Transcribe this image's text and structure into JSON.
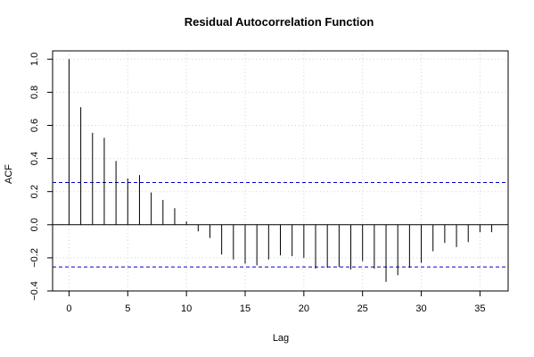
{
  "chart_data": {
    "type": "bar",
    "title": "Residual Autocorrelation Function",
    "xlabel": "Lag",
    "ylabel": "ACF",
    "xlim": [
      -1.4,
      37.4
    ],
    "ylim": [
      -0.4,
      1.05
    ],
    "xticks": [
      0,
      5,
      10,
      15,
      20,
      25,
      30,
      35
    ],
    "yticks": [
      -0.4,
      -0.2,
      0.0,
      0.2,
      0.4,
      0.6,
      0.8,
      1.0
    ],
    "xtick_labels": [
      "0",
      "5",
      "10",
      "15",
      "20",
      "25",
      "30",
      "35"
    ],
    "ytick_labels": [
      "−0.4",
      "−0.2",
      "0.0",
      "0.2",
      "0.4",
      "0.6",
      "0.8",
      "1.0"
    ],
    "grid": true,
    "lags": [
      0,
      1,
      2,
      3,
      4,
      5,
      6,
      7,
      8,
      9,
      10,
      11,
      12,
      13,
      14,
      15,
      16,
      17,
      18,
      19,
      20,
      21,
      22,
      23,
      24,
      25,
      26,
      27,
      28,
      29,
      30,
      31,
      32,
      33,
      34,
      35,
      36
    ],
    "values": [
      1.0,
      0.71,
      0.555,
      0.525,
      0.385,
      0.28,
      0.3,
      0.195,
      0.15,
      0.1,
      0.02,
      -0.04,
      -0.08,
      -0.18,
      -0.21,
      -0.235,
      -0.245,
      -0.21,
      -0.185,
      -0.19,
      -0.2,
      -0.265,
      -0.26,
      -0.255,
      -0.27,
      -0.22,
      -0.265,
      -0.345,
      -0.305,
      -0.26,
      -0.23,
      -0.16,
      -0.11,
      -0.135,
      -0.105,
      -0.045,
      -0.045
    ],
    "confidence_bound": 0.255,
    "colors": {
      "bars": "#000000",
      "confidence": "#0000cc",
      "grid": "#d3d3d3",
      "axes": "#000000"
    }
  }
}
